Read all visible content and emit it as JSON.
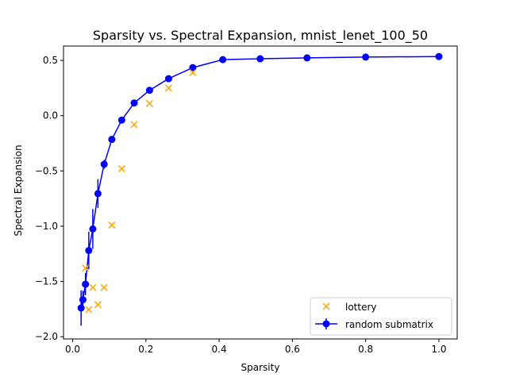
{
  "chart_data": {
    "type": "scatter",
    "title": "Sparsity vs. Spectral Expansion, mnist_lenet_100_50",
    "xlabel": "Sparsity",
    "ylabel": "Spectral Expansion",
    "xlim": [
      -0.025,
      1.05
    ],
    "ylim": [
      -2.02,
      0.63
    ],
    "xticks": [
      0.0,
      0.2,
      0.4,
      0.6,
      0.8,
      1.0
    ],
    "xtick_labels": [
      "0.0",
      "0.2",
      "0.4",
      "0.6",
      "0.8",
      "1.0"
    ],
    "yticks": [
      -2.0,
      -1.5,
      -1.0,
      -0.5,
      0.0,
      0.5
    ],
    "ytick_labels": [
      "−2.0",
      "−1.5",
      "−1.0",
      "−0.5",
      "0.0",
      "0.5"
    ],
    "grid": false,
    "legend_position": "lower-right",
    "series": [
      {
        "name": "random submatrix",
        "kind": "errorbar-line",
        "color": "#0000ff",
        "marker": "circle",
        "x": [
          1.0,
          0.8,
          0.64,
          0.512,
          0.41,
          0.328,
          0.262,
          0.21,
          0.168,
          0.134,
          0.107,
          0.086,
          0.069,
          0.055,
          0.044,
          0.035,
          0.028,
          0.023
        ],
        "y": [
          0.535,
          0.53,
          0.523,
          0.515,
          0.507,
          0.435,
          0.335,
          0.23,
          0.115,
          -0.04,
          -0.215,
          -0.44,
          -0.705,
          -1.025,
          -1.22,
          -1.525,
          -1.665,
          -1.74
        ],
        "yerr": [
          0.005,
          0.005,
          0.006,
          0.007,
          0.008,
          0.01,
          0.012,
          0.015,
          0.02,
          0.025,
          0.03,
          0.04,
          0.13,
          0.18,
          0.17,
          0.1,
          0.08,
          0.16
        ]
      },
      {
        "name": "lottery",
        "kind": "scatter",
        "color": "#ffa500",
        "marker": "x",
        "x": [
          0.328,
          0.262,
          0.21,
          0.168,
          0.134,
          0.107,
          0.086,
          0.069,
          0.055,
          0.044,
          0.035
        ],
        "y": [
          0.39,
          0.25,
          0.11,
          -0.08,
          -0.48,
          -0.99,
          -1.555,
          -1.71,
          -1.555,
          -1.755,
          -1.38
        ]
      }
    ]
  }
}
